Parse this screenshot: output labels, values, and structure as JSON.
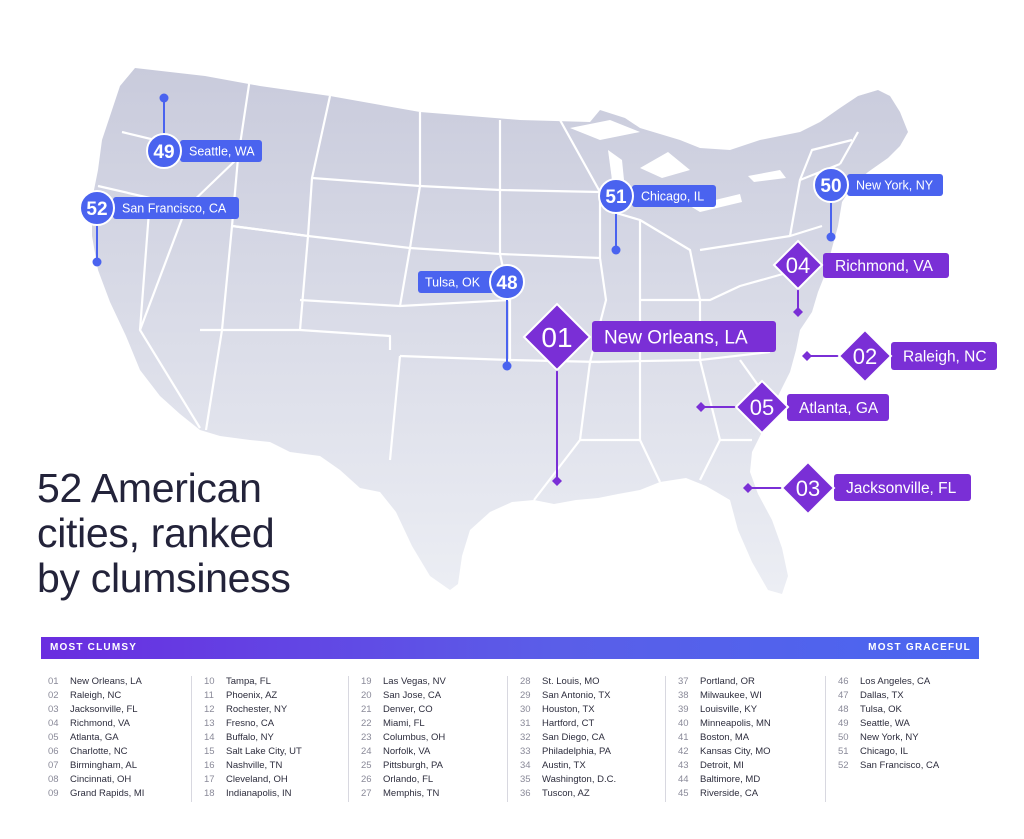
{
  "title_lines": [
    "52 American",
    "cities, ranked",
    "by clumsiness"
  ],
  "scale": {
    "left": "MOST CLUMSY",
    "right": "MOST GRACEFUL"
  },
  "colors": {
    "map": "#e2e3ed",
    "state_border": "#ffffff",
    "blue": "#4a63ef",
    "purple": "#7a2fd6",
    "title": "#23233a"
  },
  "map_callouts": [
    {
      "rank": "49",
      "city": "Seattle, WA",
      "color": "blue"
    },
    {
      "rank": "52",
      "city": "San Francisco, CA",
      "color": "blue"
    },
    {
      "rank": "51",
      "city": "Chicago, IL",
      "color": "blue"
    },
    {
      "rank": "50",
      "city": "New York, NY",
      "color": "blue"
    },
    {
      "rank": "48",
      "city": "Tulsa, OK",
      "color": "blue"
    },
    {
      "rank": "04",
      "city": "Richmond, VA",
      "color": "purple"
    },
    {
      "rank": "01",
      "city": "New Orleans, LA",
      "color": "purple"
    },
    {
      "rank": "02",
      "city": "Raleigh, NC",
      "color": "purple"
    },
    {
      "rank": "05",
      "city": "Atlanta, GA",
      "color": "purple"
    },
    {
      "rank": "03",
      "city": "Jacksonville, FL",
      "color": "purple"
    }
  ],
  "ranking": [
    [
      "01",
      "New Orleans, LA"
    ],
    [
      "02",
      "Raleigh, NC"
    ],
    [
      "03",
      "Jacksonville, FL"
    ],
    [
      "04",
      "Richmond, VA"
    ],
    [
      "05",
      "Atlanta, GA"
    ],
    [
      "06",
      "Charlotte, NC"
    ],
    [
      "07",
      "Birmingham, AL"
    ],
    [
      "08",
      "Cincinnati, OH"
    ],
    [
      "09",
      "Grand Rapids, MI"
    ],
    [
      "10",
      "Tampa, FL"
    ],
    [
      "11",
      "Phoenix, AZ"
    ],
    [
      "12",
      "Rochester, NY"
    ],
    [
      "13",
      "Fresno, CA"
    ],
    [
      "14",
      "Buffalo, NY"
    ],
    [
      "15",
      "Salt Lake City, UT"
    ],
    [
      "16",
      "Nashville, TN"
    ],
    [
      "17",
      "Cleveland, OH"
    ],
    [
      "18",
      "Indianapolis, IN"
    ],
    [
      "19",
      "Las Vegas, NV"
    ],
    [
      "20",
      "San Jose, CA"
    ],
    [
      "21",
      "Denver, CO"
    ],
    [
      "22",
      "Miami, FL"
    ],
    [
      "23",
      "Columbus, OH"
    ],
    [
      "24",
      "Norfolk, VA"
    ],
    [
      "25",
      "Pittsburgh, PA"
    ],
    [
      "26",
      "Orlando, FL"
    ],
    [
      "27",
      "Memphis, TN"
    ],
    [
      "28",
      "St. Louis, MO"
    ],
    [
      "29",
      "San Antonio, TX"
    ],
    [
      "30",
      "Houston, TX"
    ],
    [
      "31",
      "Hartford, CT"
    ],
    [
      "32",
      "San Diego, CA"
    ],
    [
      "33",
      "Philadelphia, PA"
    ],
    [
      "34",
      "Austin, TX"
    ],
    [
      "35",
      "Washington, D.C."
    ],
    [
      "36",
      "Tuscon, AZ"
    ],
    [
      "37",
      "Portland, OR"
    ],
    [
      "38",
      "Milwaukee, WI"
    ],
    [
      "39",
      "Louisville, KY"
    ],
    [
      "40",
      "Minneapolis, MN"
    ],
    [
      "41",
      "Boston, MA"
    ],
    [
      "42",
      "Kansas City, MO"
    ],
    [
      "43",
      "Detroit, MI"
    ],
    [
      "44",
      "Baltimore, MD"
    ],
    [
      "45",
      "Riverside, CA"
    ],
    [
      "46",
      "Los Angeles, CA"
    ],
    [
      "47",
      "Dallas, TX"
    ],
    [
      "48",
      "Tulsa, OK"
    ],
    [
      "49",
      "Seattle, WA"
    ],
    [
      "50",
      "New York, NY"
    ],
    [
      "51",
      "Chicago, IL"
    ],
    [
      "52",
      "San Francisco, CA"
    ]
  ]
}
